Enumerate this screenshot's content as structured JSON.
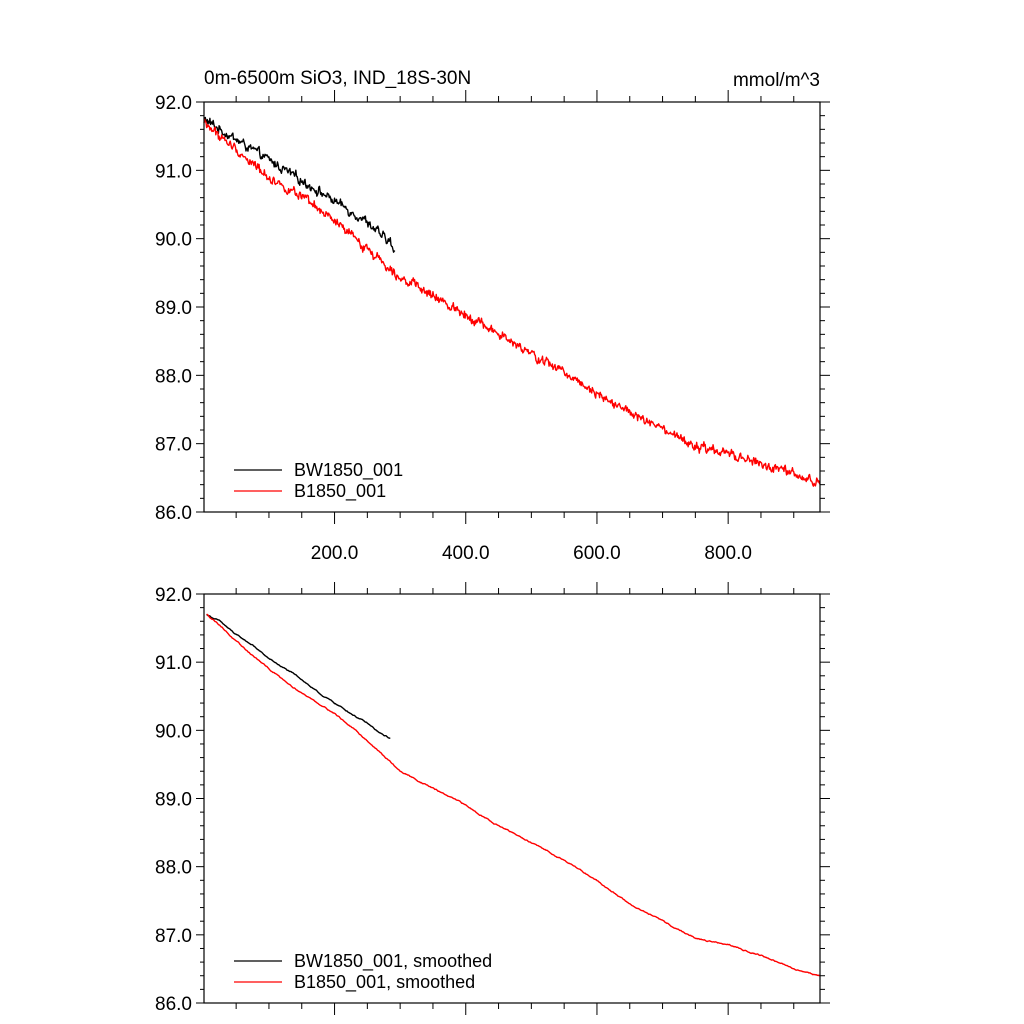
{
  "figure": {
    "title_left": "0m-6500m SiO3, IND_18S-30N",
    "title_right": "mmol/m^3"
  },
  "chart_data": [
    {
      "type": "line",
      "panel": "top",
      "title": "0m-6500m SiO3, IND_18S-30N",
      "units_label": "mmol/m^3",
      "xlim": [
        1,
        940
      ],
      "ylim": [
        86.0,
        92.0
      ],
      "xticks": [
        200,
        400,
        600,
        800
      ],
      "xtick_labels": [
        "200.0",
        "400.0",
        "600.0",
        "800.0"
      ],
      "yticks": [
        86,
        87,
        88,
        89,
        90,
        91,
        92
      ],
      "ytick_labels": [
        "86.0",
        "87.0",
        "88.0",
        "89.0",
        "90.0",
        "91.0",
        "92.0"
      ],
      "legend_position": "bottom-left",
      "series": [
        {
          "name": "BW1850_001",
          "color": "#000000",
          "noise": "high",
          "points": [
            [
              1,
              91.75
            ],
            [
              25,
              91.6
            ],
            [
              50,
              91.45
            ],
            [
              75,
              91.3
            ],
            [
              100,
              91.15
            ],
            [
              125,
              91.0
            ],
            [
              150,
              90.85
            ],
            [
              175,
              90.7
            ],
            [
              200,
              90.55
            ],
            [
              225,
              90.4
            ],
            [
              250,
              90.25
            ],
            [
              270,
              90.05
            ],
            [
              285,
              89.95
            ],
            [
              292,
              89.75
            ]
          ]
        },
        {
          "name": "B1850_001",
          "color": "#ff0000",
          "noise": "high",
          "points": [
            [
              1,
              91.7
            ],
            [
              25,
              91.5
            ],
            [
              50,
              91.3
            ],
            [
              75,
              91.1
            ],
            [
              100,
              90.9
            ],
            [
              150,
              90.6
            ],
            [
              200,
              90.25
            ],
            [
              250,
              89.85
            ],
            [
              300,
              89.45
            ],
            [
              350,
              89.15
            ],
            [
              400,
              88.9
            ],
            [
              450,
              88.6
            ],
            [
              500,
              88.3
            ],
            [
              550,
              88.05
            ],
            [
              600,
              87.75
            ],
            [
              650,
              87.45
            ],
            [
              700,
              87.2
            ],
            [
              750,
              86.95
            ],
            [
              800,
              86.85
            ],
            [
              850,
              86.7
            ],
            [
              900,
              86.55
            ],
            [
              940,
              86.4
            ]
          ]
        }
      ]
    },
    {
      "type": "line",
      "panel": "bottom",
      "xlim": [
        1,
        940
      ],
      "ylim": [
        86.0,
        92.0
      ],
      "xticks": [
        200,
        400,
        600,
        800
      ],
      "yticks": [
        86,
        87,
        88,
        89,
        90,
        91,
        92
      ],
      "ytick_labels": [
        "86.0",
        "87.0",
        "88.0",
        "89.0",
        "90.0",
        "91.0",
        "92.0"
      ],
      "legend_position": "bottom-left",
      "series": [
        {
          "name": "BW1850_001, smoothed",
          "color": "#000000",
          "noise": "low",
          "points": [
            [
              5,
              91.7
            ],
            [
              25,
              91.6
            ],
            [
              50,
              91.4
            ],
            [
              75,
              91.25
            ],
            [
              100,
              91.05
            ],
            [
              125,
              90.9
            ],
            [
              150,
              90.75
            ],
            [
              175,
              90.55
            ],
            [
              200,
              90.4
            ],
            [
              225,
              90.25
            ],
            [
              250,
              90.1
            ],
            [
              270,
              89.95
            ],
            [
              285,
              89.88
            ]
          ]
        },
        {
          "name": "B1850_001, smoothed",
          "color": "#ff0000",
          "noise": "low",
          "points": [
            [
              5,
              91.7
            ],
            [
              25,
              91.55
            ],
            [
              50,
              91.3
            ],
            [
              75,
              91.1
            ],
            [
              100,
              90.9
            ],
            [
              150,
              90.55
            ],
            [
              200,
              90.25
            ],
            [
              250,
              89.85
            ],
            [
              300,
              89.4
            ],
            [
              350,
              89.15
            ],
            [
              400,
              88.9
            ],
            [
              450,
              88.6
            ],
            [
              500,
              88.35
            ],
            [
              550,
              88.1
            ],
            [
              600,
              87.8
            ],
            [
              650,
              87.45
            ],
            [
              700,
              87.2
            ],
            [
              750,
              86.95
            ],
            [
              800,
              86.85
            ],
            [
              850,
              86.7
            ],
            [
              900,
              86.5
            ],
            [
              940,
              86.4
            ]
          ]
        }
      ]
    }
  ]
}
